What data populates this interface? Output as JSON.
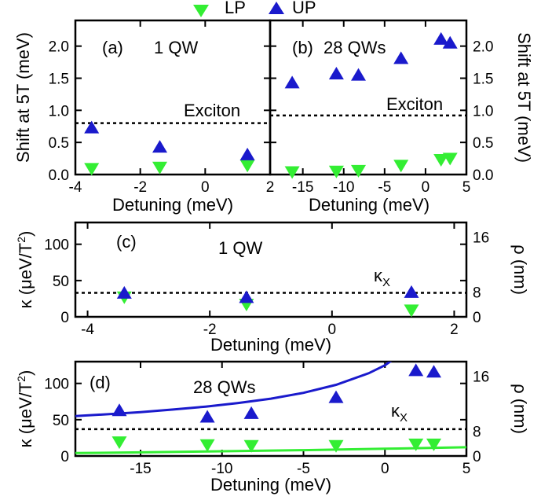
{
  "legend": {
    "placement": "top",
    "items": [
      {
        "label": "LP",
        "color": "#33ee33",
        "marker": "triangle-down"
      },
      {
        "label": "UP",
        "color": "#1a1acc",
        "marker": "triangle-up"
      }
    ]
  },
  "chart_data": [
    {
      "id": "a",
      "type": "scatter",
      "panel_label": "(a)",
      "sample_label": "1 QW",
      "reference_label": "Exciton",
      "reference_value": 0.8,
      "xlabel": "Detuning (meV)",
      "ylabel": "Shift at 5T (meV)",
      "xlim": [
        -4,
        2
      ],
      "ylim": [
        0,
        2.4
      ],
      "x_ticks": [
        -4,
        -2,
        0,
        2
      ],
      "y_ticks": [
        0.0,
        0.5,
        1.0,
        1.5,
        2.0
      ],
      "y_tick_labels": [
        "0.0",
        "0.5",
        "1.0",
        "1.5",
        "2.0"
      ],
      "series": [
        {
          "name": "LP",
          "x": [
            -3.5,
            -1.4,
            1.3
          ],
          "y": [
            0.1,
            0.12,
            0.15
          ]
        },
        {
          "name": "UP",
          "x": [
            -3.5,
            -1.4,
            1.3
          ],
          "y": [
            0.72,
            0.42,
            0.3
          ]
        }
      ]
    },
    {
      "id": "b",
      "type": "scatter",
      "panel_label": "(b)",
      "sample_label": "28 QWs",
      "reference_label": "Exciton",
      "reference_value": 0.92,
      "xlabel": "Detuning (meV)",
      "ylabel": "Shift at 5T (meV)",
      "xlim": [
        -19,
        5
      ],
      "ylim": [
        0,
        2.4
      ],
      "x_ticks": [
        -15,
        -10,
        -5,
        0,
        5
      ],
      "y_ticks": [
        0.0,
        0.5,
        1.0,
        1.5,
        2.0
      ],
      "y_tick_labels": [
        "0.0",
        "0.5",
        "1.0",
        "1.5",
        "2.0"
      ],
      "series": [
        {
          "name": "LP",
          "x": [
            -16.3,
            -10.9,
            -8.2,
            -3.0,
            1.9,
            3.0
          ],
          "y": [
            0.05,
            0.06,
            0.07,
            0.15,
            0.24,
            0.26
          ]
        },
        {
          "name": "UP",
          "x": [
            -16.3,
            -10.9,
            -8.2,
            -3.0,
            1.9,
            3.0
          ],
          "y": [
            1.42,
            1.56,
            1.54,
            1.8,
            2.1,
            2.04
          ]
        }
      ]
    },
    {
      "id": "c",
      "type": "scatter",
      "panel_label": "(c)",
      "sample_label": "1 QW",
      "reference_label": "κX",
      "reference_value": 33,
      "xlabel": "Detuning (meV)",
      "ylabel": "κ (μeV/T²)",
      "right_ylabel": "ρ (nm)",
      "xlim": [
        -4.2,
        2.2
      ],
      "ylim": [
        0,
        130
      ],
      "x_ticks": [
        -4,
        -2,
        0,
        2
      ],
      "y_ticks": [
        0,
        50,
        100
      ],
      "y_tick_labels": [
        "0",
        "50",
        "100"
      ],
      "right_y_ticks": [
        0,
        8,
        16
      ],
      "series": [
        {
          "name": "LP",
          "x": [
            -3.4,
            -1.4,
            1.3
          ],
          "y": [
            28,
            18,
            10
          ]
        },
        {
          "name": "UP",
          "x": [
            -3.4,
            -1.4,
            1.3
          ],
          "y": [
            32,
            26,
            33
          ]
        }
      ]
    },
    {
      "id": "d",
      "type": "scatter",
      "panel_label": "(d)",
      "sample_label": "28 QWs",
      "reference_label": "κX",
      "reference_value": 37,
      "xlabel": "Detuning (meV)",
      "ylabel": "κ (μeV/T²)",
      "right_ylabel": "ρ (nm)",
      "xlim": [
        -19,
        5
      ],
      "ylim": [
        0,
        130
      ],
      "x_ticks": [
        -15,
        -10,
        -5,
        0,
        5
      ],
      "y_ticks": [
        0,
        50,
        100
      ],
      "y_tick_labels": [
        "0",
        "50",
        "100"
      ],
      "right_y_ticks": [
        0,
        8,
        16
      ],
      "series": [
        {
          "name": "LP",
          "x": [
            -16.3,
            -10.9,
            -8.2,
            -3.0,
            1.9,
            3.0
          ],
          "y": [
            20,
            16,
            15,
            15,
            17,
            17
          ]
        },
        {
          "name": "UP",
          "x": [
            -16.3,
            -10.9,
            -8.2,
            -3.0,
            1.9,
            3.0
          ],
          "y": [
            62,
            53,
            58,
            80,
            117,
            115
          ]
        }
      ],
      "fit_lines": [
        {
          "color": "#1a1acc",
          "x": [
            -19,
            -17,
            -15,
            -13,
            -11,
            -9,
            -7,
            -5,
            -3,
            -1,
            0,
            0.5
          ],
          "y": [
            55,
            57.5,
            60.5,
            64,
            68,
            73,
            79,
            87,
            98,
            114,
            125,
            133
          ]
        },
        {
          "color": "#33ee33",
          "x": [
            -19,
            -15,
            -10,
            -5,
            0,
            5
          ],
          "y": [
            4,
            5,
            6.5,
            8,
            10,
            12
          ]
        }
      ]
    }
  ]
}
